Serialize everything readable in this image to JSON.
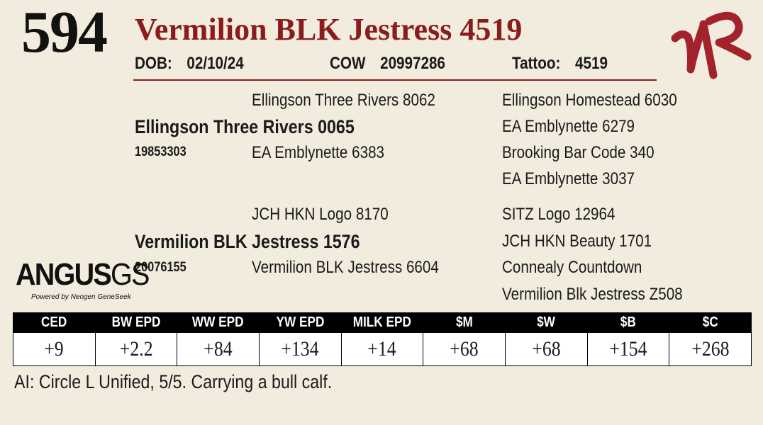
{
  "lot_number": "594",
  "animal_name": "Vermilion BLK Jestress 4519",
  "info": {
    "dob_label": "DOB:",
    "dob_value": "02/10/24",
    "cow_label": "COW",
    "cow_value": "20997286",
    "tattoo_label": "Tattoo:",
    "tattoo_value": "4519"
  },
  "brand_logo_letters": "VR",
  "colors": {
    "title_red": "#8b1c1c",
    "background": "#f2ecdf",
    "header_black": "#000000"
  },
  "pedigree": {
    "sire": {
      "name": "Ellingson Three Rivers 0065",
      "reg": "19853303"
    },
    "sire_sire": "Ellingson Three Rivers 8062",
    "sire_dam": "EA Emblynette 6383",
    "sire_sire_sire": "Ellingson Homestead 6030",
    "sire_sire_dam": "EA Emblynette 6279",
    "sire_dam_sire": "Brooking Bar Code 340",
    "sire_dam_dam": "EA Emblynette 3037",
    "dam": {
      "name": "Vermilion BLK Jestress 1576",
      "reg": "20076155"
    },
    "dam_sire": "JCH HKN Logo 8170",
    "dam_dam": "Vermilion BLK Jestress 6604",
    "dam_sire_sire": "SITZ Logo 12964",
    "dam_sire_dam": "JCH HKN Beauty 1701",
    "dam_dam_sire": "Connealy Countdown",
    "dam_dam_dam": "Vermilion Blk Jestress Z508"
  },
  "angus_logo": {
    "word": "ANGUS",
    "suffix": "GS",
    "tagline": "Powered by Neogen GeneSeek"
  },
  "epd": {
    "headers": [
      "CED",
      "BW EPD",
      "WW EPD",
      "YW EPD",
      "MILK EPD",
      "$M",
      "$W",
      "$B",
      "$C"
    ],
    "values": [
      "+9",
      "+2.2",
      "+84",
      "+134",
      "+14",
      "+68",
      "+68",
      "+154",
      "+268"
    ]
  },
  "footnote": "AI:  Circle L Unified, 5/5.  Carrying a bull calf."
}
